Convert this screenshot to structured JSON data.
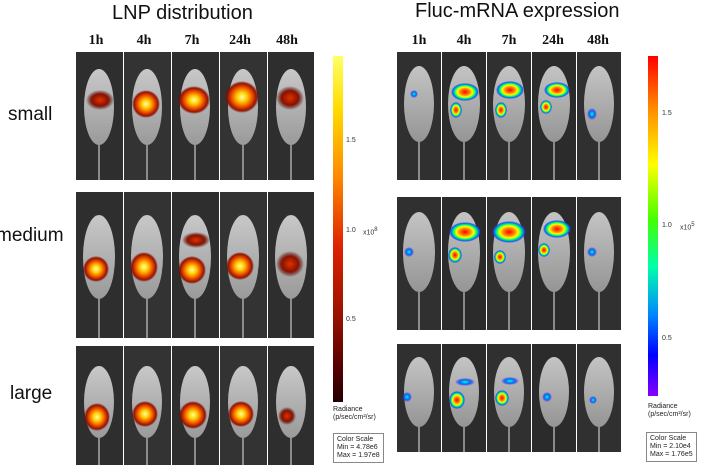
{
  "figure": {
    "left_title": "LNP distribution",
    "right_title": "Fluc-mRNA expression",
    "timepoints": [
      "1h",
      "4h",
      "7h",
      "24h",
      "48h"
    ],
    "rows": [
      "small",
      "medium",
      "large"
    ]
  },
  "left_scale": {
    "ticks": [
      "1.5",
      "1.0",
      "0.5"
    ],
    "exponent_label": "x10",
    "exponent": "8",
    "radiance_title": "Radiance",
    "radiance_units": "(p/sec/cm²/sr)",
    "color_scale_title": "Color Scale",
    "min": "Min = 4.78e6",
    "max": "Max = 1.97e8",
    "colors": [
      "#ffff66",
      "#ffdd00",
      "#ff8800",
      "#dd2200",
      "#991100",
      "#550000",
      "#220000"
    ]
  },
  "right_scale": {
    "ticks": [
      "1.5",
      "1.0",
      "0.5"
    ],
    "exponent_label": "x10",
    "exponent": "5",
    "radiance_title": "Radiance",
    "radiance_units": "(p/sec/cm²/sr)",
    "color_scale_title": "Color Scale",
    "min": "Min = 2.10e4",
    "max": "Max = 1.76e5",
    "colors": [
      "#ff0000",
      "#ff8800",
      "#ffff00",
      "#44ff00",
      "#00ffaa",
      "#0088ff",
      "#0000ff",
      "#8800ff"
    ]
  }
}
